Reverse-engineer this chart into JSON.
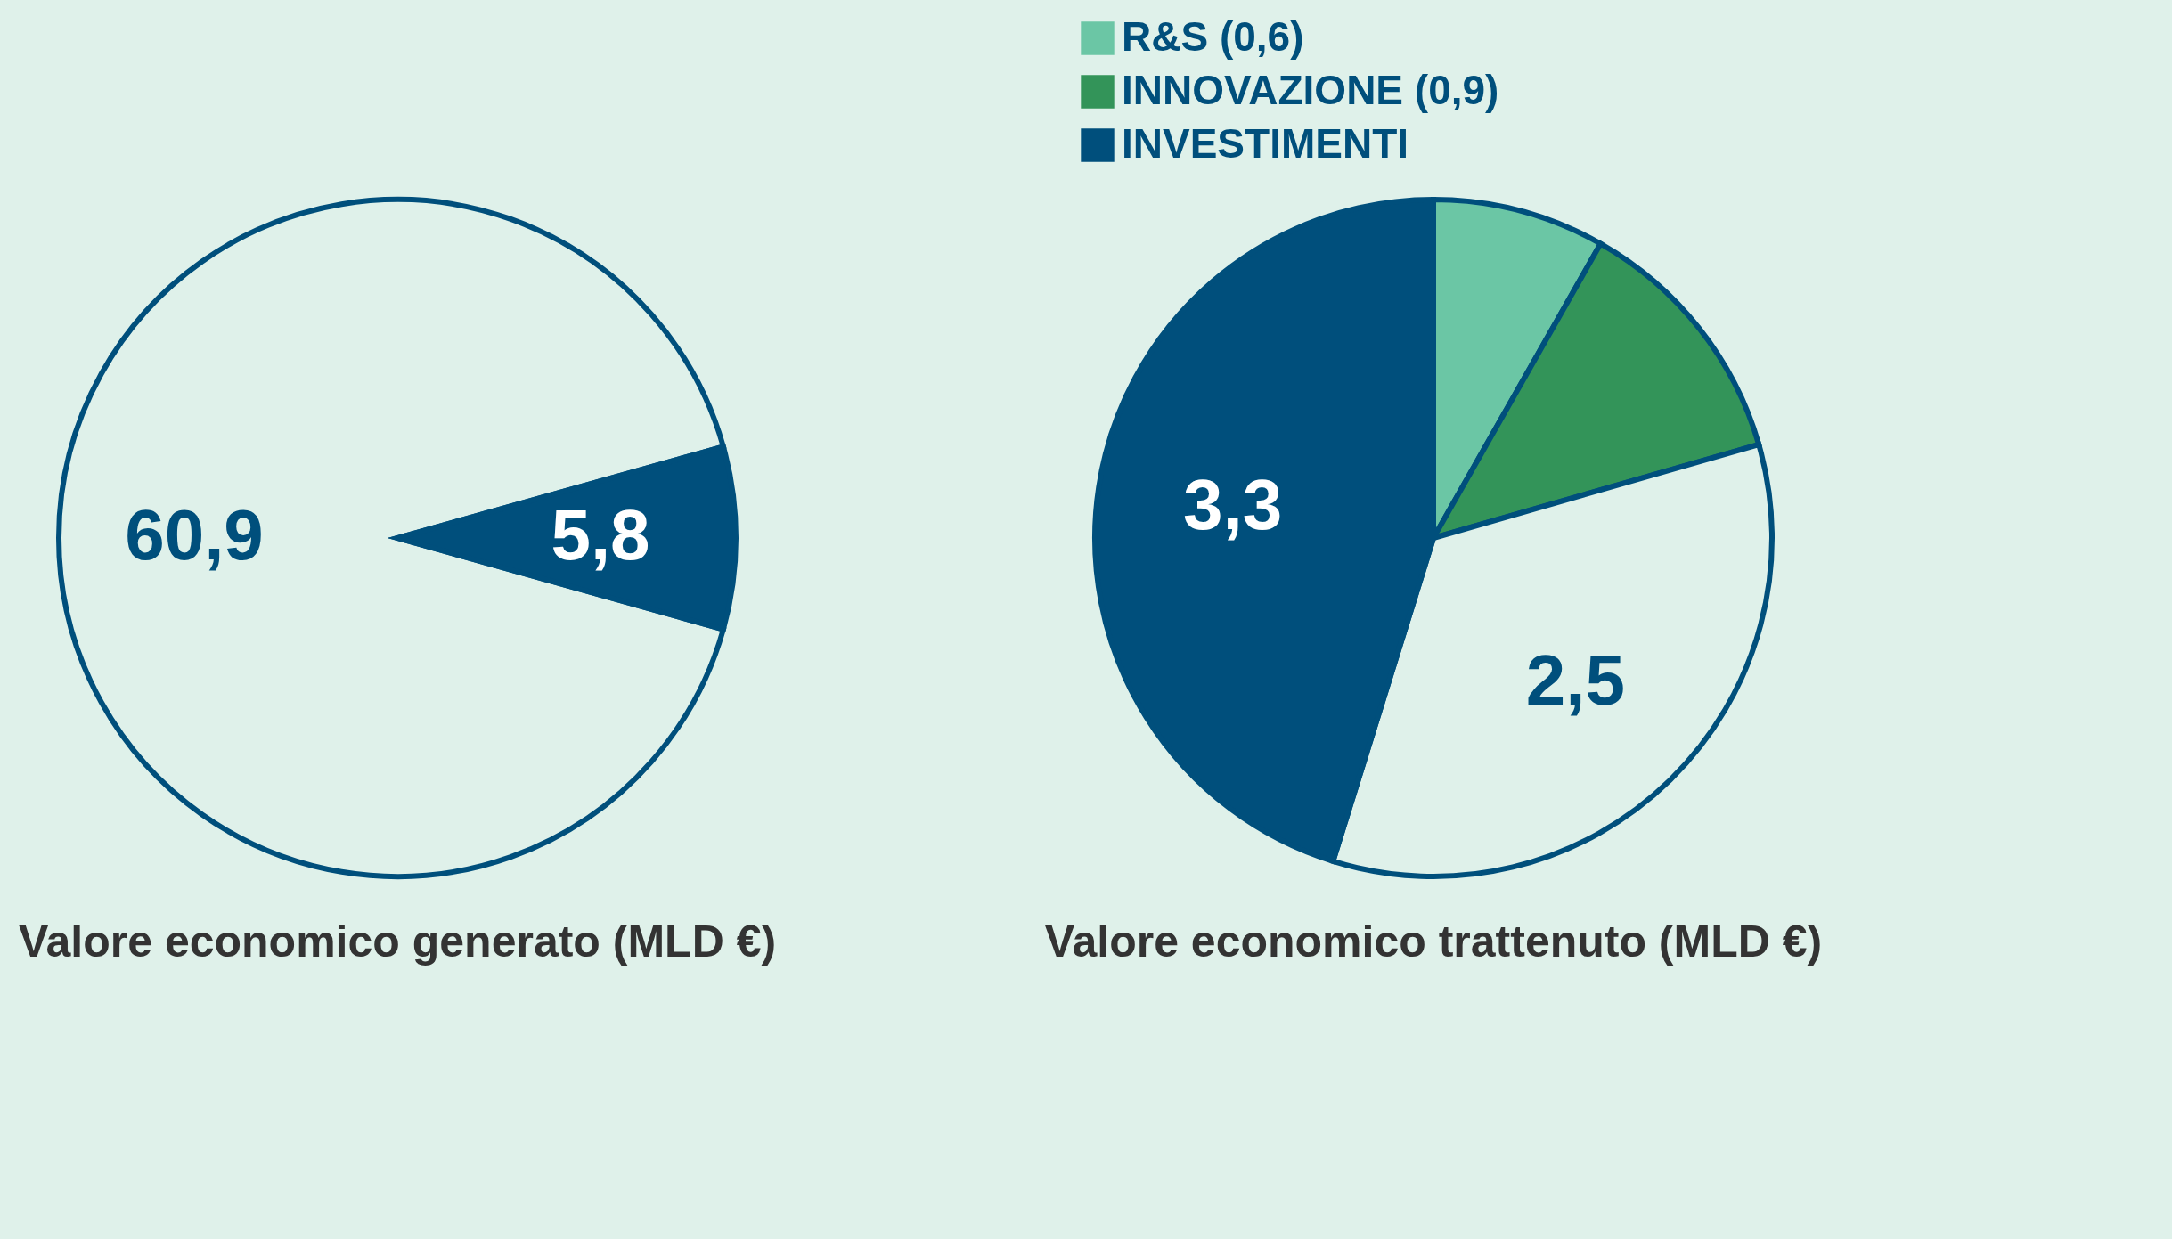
{
  "chart_data": [
    {
      "type": "pie",
      "title": "Valore economico generato (MLD €)",
      "categories": [
        null,
        null
      ],
      "values": [
        60.9,
        5.8
      ],
      "colors": [
        "#dff1ea",
        "#004f7c"
      ],
      "value_labels": [
        "60,9",
        "5,8"
      ],
      "legend": false
    },
    {
      "type": "pie",
      "title": "Valore economico trattenuto (MLD €)",
      "categories": [
        "R&S (0,6)",
        "INNOVAZIONE (0,9)",
        null,
        "INVESTIMENTI"
      ],
      "values": [
        0.6,
        0.9,
        2.5,
        3.3
      ],
      "colors": [
        "#6bc6a5",
        "#339459",
        "#dff1ea",
        "#004f7c"
      ],
      "value_labels": [
        null,
        null,
        "2,5",
        "3,3"
      ],
      "legend": "top"
    }
  ]
}
